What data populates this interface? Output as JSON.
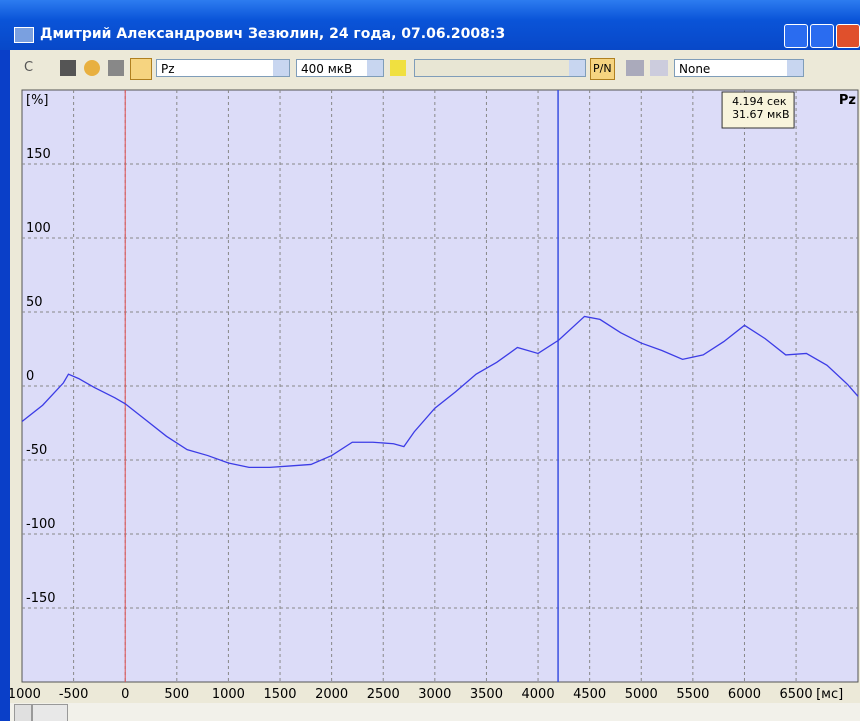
{
  "window": {
    "title": "Дмитрий Александрович Зезюлин, 24 года, 07.06.2008:3"
  },
  "toolbar": {
    "c_button": "C",
    "channel": "Pz",
    "scale": "400 мкВ",
    "pn_button": "P/N",
    "mode": "None"
  },
  "chart_data": {
    "type": "line",
    "y_label": "[%]",
    "x_label": "[мс]",
    "channel_label": "Pz",
    "x": [
      -1000,
      -800,
      -600,
      -550,
      -450,
      -300,
      -100,
      0,
      200,
      400,
      600,
      800,
      1000,
      1200,
      1400,
      1600,
      1800,
      2000,
      2200,
      2400,
      2600,
      2700,
      2800,
      3000,
      3200,
      3400,
      3600,
      3800,
      4000,
      4200,
      4450,
      4600,
      4800,
      5000,
      5200,
      5400,
      5600,
      5800,
      6000,
      6200,
      6400,
      6600,
      6800,
      7000,
      7100
    ],
    "series": [
      {
        "name": "Pz",
        "color": "#3c3ce6",
        "values": [
          -24,
          -13,
          2,
          8,
          5,
          -1,
          -8,
          -12,
          -23,
          -34,
          -43,
          -47,
          -52,
          -55,
          -55,
          -54,
          -53,
          -47,
          -38,
          -38,
          -39,
          -41,
          -31,
          -15,
          -4,
          8,
          16,
          26,
          22,
          31,
          47,
          45,
          36,
          29,
          24,
          18,
          21,
          30,
          41,
          32,
          21,
          22,
          14,
          1,
          -7
        ]
      }
    ],
    "xlim": [
      -1000,
      7100
    ],
    "ylim": [
      -200,
      200
    ],
    "xticks": [
      -1000,
      -500,
      0,
      500,
      1000,
      1500,
      2000,
      2500,
      3000,
      3500,
      4000,
      4500,
      5000,
      5500,
      6000,
      6500
    ],
    "yticks": [
      -150,
      -100,
      -50,
      0,
      50,
      100,
      150
    ],
    "grid": true,
    "marker_x": 0,
    "marker_color": "#e05050",
    "cursor": {
      "x": 4194,
      "color": "#3c50e0",
      "label": [
        "4.194 сек",
        "31.67 мкВ"
      ]
    }
  }
}
